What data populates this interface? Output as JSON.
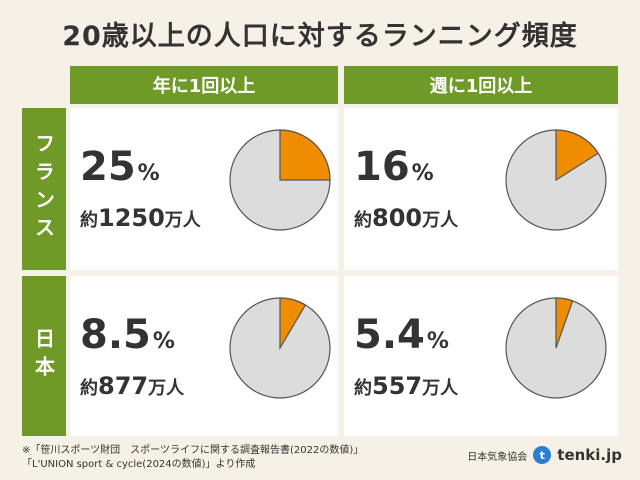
{
  "title": "20歳以上の人口に対するランニング頻度",
  "columns": [
    "年に1回以上",
    "週に1回以上"
  ],
  "rows": [
    "フランス",
    "日本"
  ],
  "colors": {
    "accent": "#6f9a27",
    "slice": "#f08c00",
    "rest": "#dcdcdc",
    "background": "#f6f1e6"
  },
  "chart_data": {
    "type": "pie",
    "title": "20歳以上の人口に対するランニング頻度",
    "panels": [
      {
        "row": "フランス",
        "column": "年に1回以上",
        "percent": 25,
        "percent_label": "25",
        "people_label": "1250"
      },
      {
        "row": "フランス",
        "column": "週に1回以上",
        "percent": 16,
        "percent_label": "16",
        "people_label": "800"
      },
      {
        "row": "日本",
        "column": "年に1回以上",
        "percent": 8.5,
        "percent_label": "8.5",
        "people_label": "877"
      },
      {
        "row": "日本",
        "column": "週に1回以上",
        "percent": 5.4,
        "percent_label": "5.4",
        "people_label": "557"
      }
    ],
    "percent_unit": "%",
    "people_prefix": "約",
    "people_suffix": "万人"
  },
  "footnote": {
    "line1": "※「笹川スポーツ財団　スポーツライフに関する調査報告書(2022の数値)」",
    "line2": "「L'UNION sport & cycle(2024の数値)」より作成"
  },
  "credit": {
    "org": "日本気象協会",
    "brand": "tenki.jp",
    "logo_icon": "t"
  }
}
